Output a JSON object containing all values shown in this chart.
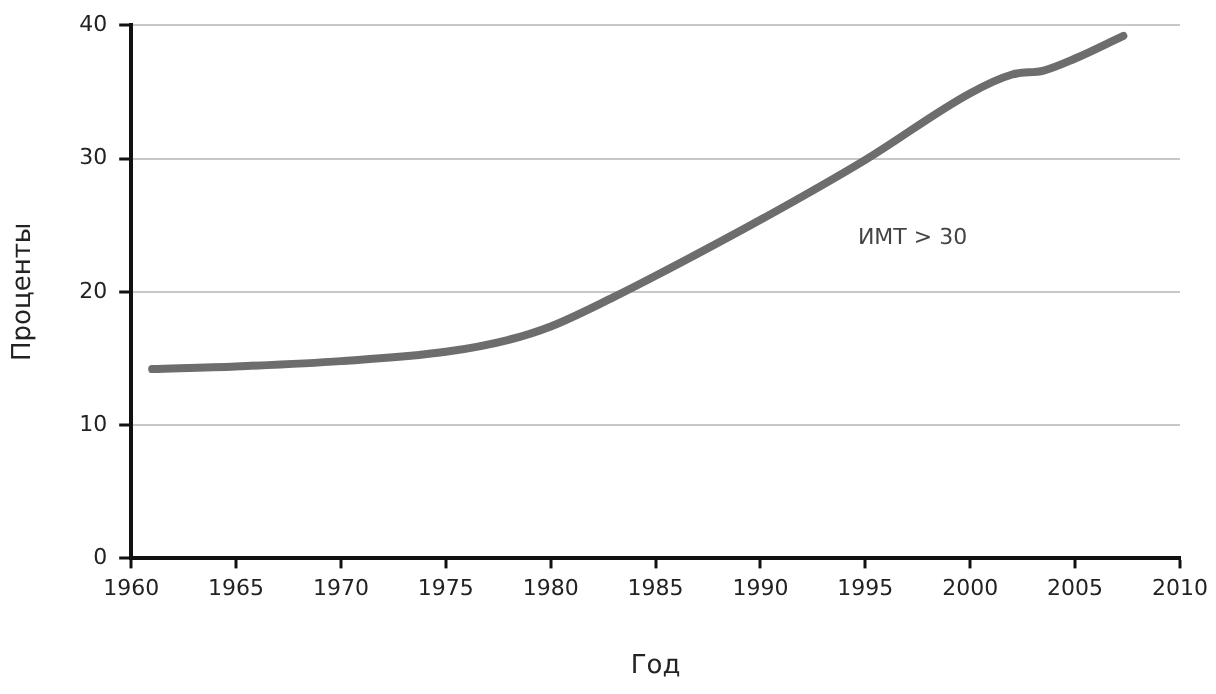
{
  "chart_data": {
    "type": "line",
    "xlabel": "Год",
    "ylabel": "Проценты",
    "annotations": [
      "ИМТ > 30"
    ],
    "x": [
      1961,
      1965,
      1970,
      1975,
      1978,
      1980,
      1983,
      1985,
      1990,
      1995,
      2000,
      2002,
      2003.5,
      2005,
      2007.3
    ],
    "series": [
      {
        "color": "#6d6d6d",
        "values": [
          14.2,
          14.4,
          14.8,
          15.5,
          16.4,
          17.4,
          19.6,
          21.2,
          25.4,
          29.9,
          34.9,
          36.3,
          36.6,
          37.5,
          39.2
        ]
      }
    ],
    "xlim": [
      1960,
      2010
    ],
    "xticks": [
      1960,
      1965,
      1970,
      1975,
      1980,
      1985,
      1990,
      1995,
      2000,
      2005,
      2010
    ],
    "ylim": [
      0,
      40
    ],
    "yticks": [
      0,
      10,
      20,
      30,
      40
    ],
    "grid": "y",
    "legend": false,
    "marker": "none",
    "line_style": "solid"
  }
}
